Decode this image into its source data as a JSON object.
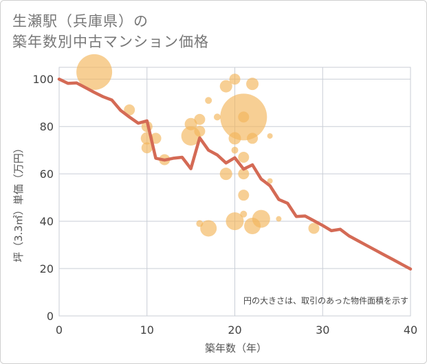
{
  "title": "生瀬駅（兵庫県）の\n築年数別中古マンション価格",
  "chart_data": {
    "type": "scatter",
    "title": "生瀬駅（兵庫県）の 築年数別中古マンション価格",
    "xlabel": "築年数（年）",
    "ylabel": "坪（3.3㎡）単価（万円）",
    "xlim": [
      0,
      40
    ],
    "ylim": [
      0,
      105
    ],
    "x_ticks": [
      0,
      10,
      20,
      30,
      40
    ],
    "y_ticks": [
      0,
      20,
      40,
      60,
      80,
      100
    ],
    "grid": true,
    "note": "円の大きさは、取引のあった物件面積を示す",
    "bubble_color": "#f2b65a",
    "line_color": "#d46a55",
    "bubbles": [
      {
        "x": 4,
        "y": 103,
        "r": 26
      },
      {
        "x": 8,
        "y": 87,
        "r": 8
      },
      {
        "x": 10,
        "y": 80,
        "r": 8
      },
      {
        "x": 10,
        "y": 75,
        "r": 9
      },
      {
        "x": 10,
        "y": 71,
        "r": 8
      },
      {
        "x": 11,
        "y": 75,
        "r": 8
      },
      {
        "x": 12,
        "y": 66,
        "r": 8
      },
      {
        "x": 15,
        "y": 81,
        "r": 9
      },
      {
        "x": 15,
        "y": 76,
        "r": 14
      },
      {
        "x": 16,
        "y": 83,
        "r": 8
      },
      {
        "x": 16,
        "y": 78,
        "r": 8
      },
      {
        "x": 16,
        "y": 39,
        "r": 5
      },
      {
        "x": 17,
        "y": 91,
        "r": 5
      },
      {
        "x": 17,
        "y": 37,
        "r": 12
      },
      {
        "x": 18,
        "y": 84,
        "r": 5
      },
      {
        "x": 19,
        "y": 97,
        "r": 9
      },
      {
        "x": 19,
        "y": 60,
        "r": 9
      },
      {
        "x": 20,
        "y": 100,
        "r": 8
      },
      {
        "x": 20,
        "y": 75,
        "r": 9
      },
      {
        "x": 20,
        "y": 70,
        "r": 5
      },
      {
        "x": 20,
        "y": 40,
        "r": 13
      },
      {
        "x": 21,
        "y": 84,
        "r": 34
      },
      {
        "x": 21,
        "y": 84,
        "r": 8
      },
      {
        "x": 21,
        "y": 67,
        "r": 8
      },
      {
        "x": 21,
        "y": 60,
        "r": 8
      },
      {
        "x": 21,
        "y": 51,
        "r": 8
      },
      {
        "x": 21,
        "y": 43,
        "r": 5
      },
      {
        "x": 22,
        "y": 98,
        "r": 9
      },
      {
        "x": 22,
        "y": 75,
        "r": 8
      },
      {
        "x": 22,
        "y": 38,
        "r": 12
      },
      {
        "x": 23,
        "y": 41,
        "r": 13
      },
      {
        "x": 24,
        "y": 76,
        "r": 4
      },
      {
        "x": 24,
        "y": 57,
        "r": 4
      },
      {
        "x": 25,
        "y": 41,
        "r": 4
      },
      {
        "x": 29,
        "y": 37,
        "r": 8
      }
    ],
    "line": {
      "x": [
        0,
        1,
        2,
        3,
        4,
        5,
        6,
        7,
        8,
        9,
        10,
        11,
        12,
        13,
        14,
        15,
        16,
        17,
        18,
        19,
        20,
        21,
        22,
        23,
        24,
        25,
        26,
        27,
        28,
        29,
        30,
        31,
        32,
        33,
        34,
        35,
        36,
        37,
        38,
        39,
        40
      ],
      "y": [
        100,
        98.2,
        98.4,
        96.4,
        94.4,
        92.6,
        91.2,
        86.8,
        84,
        81.4,
        82.4,
        66.6,
        65.8,
        66.6,
        67,
        62.2,
        75.2,
        70,
        68,
        64.6,
        66.8,
        62,
        63.8,
        57.8,
        55,
        49.2,
        47.6,
        42,
        42.2,
        40.2,
        38.2,
        36,
        36.6,
        33.8,
        31.8,
        29.8,
        27.8,
        25.8,
        23.8,
        21.8,
        19.8
      ]
    }
  }
}
